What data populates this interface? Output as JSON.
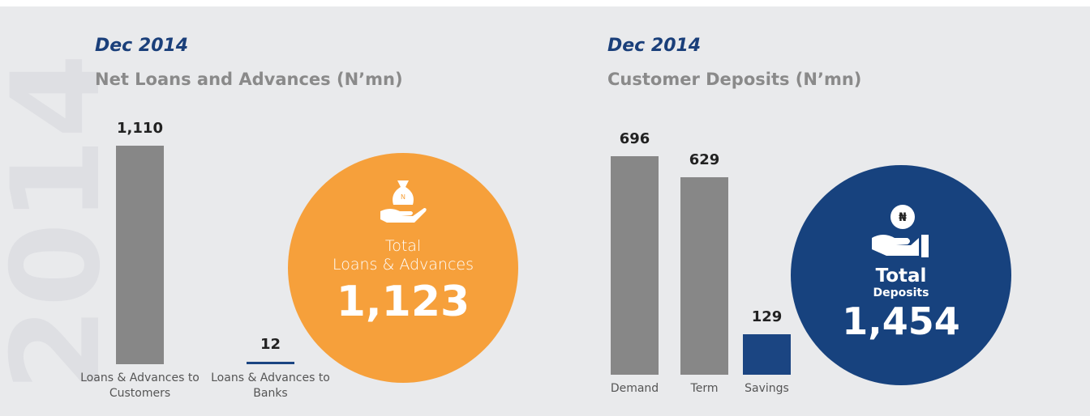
{
  "watermark": "2014",
  "chart_data": [
    {
      "type": "bar",
      "title": "Dec 2014",
      "subtitle": "Net Loans and Advances (N’mn)",
      "categories": [
        "Loans & Advances to Customers",
        "Loans & Advances to Banks"
      ],
      "values": [
        1110,
        12
      ],
      "value_labels": [
        "1,110",
        "12"
      ],
      "colors": [
        "#878787",
        "#1b4582"
      ],
      "circle_color": "#f6a03b",
      "icon_text": "N",
      "total_title": "Total",
      "total_subtitle": "Loans & Advances",
      "total": "1,123"
    },
    {
      "type": "bar",
      "title": "Dec 2014",
      "subtitle": "Customer Deposits (N’mn)",
      "categories": [
        "Demand",
        "Term",
        "Savings"
      ],
      "values": [
        696,
        629,
        129
      ],
      "value_labels": [
        "696",
        "629",
        "129"
      ],
      "colors": [
        "#878787",
        "#878787",
        "#1b4582"
      ],
      "circle_color": "#17427e",
      "icon_text": "₦",
      "total_title": "Total",
      "total_subtitle": "Deposits",
      "total": "1,454"
    }
  ]
}
